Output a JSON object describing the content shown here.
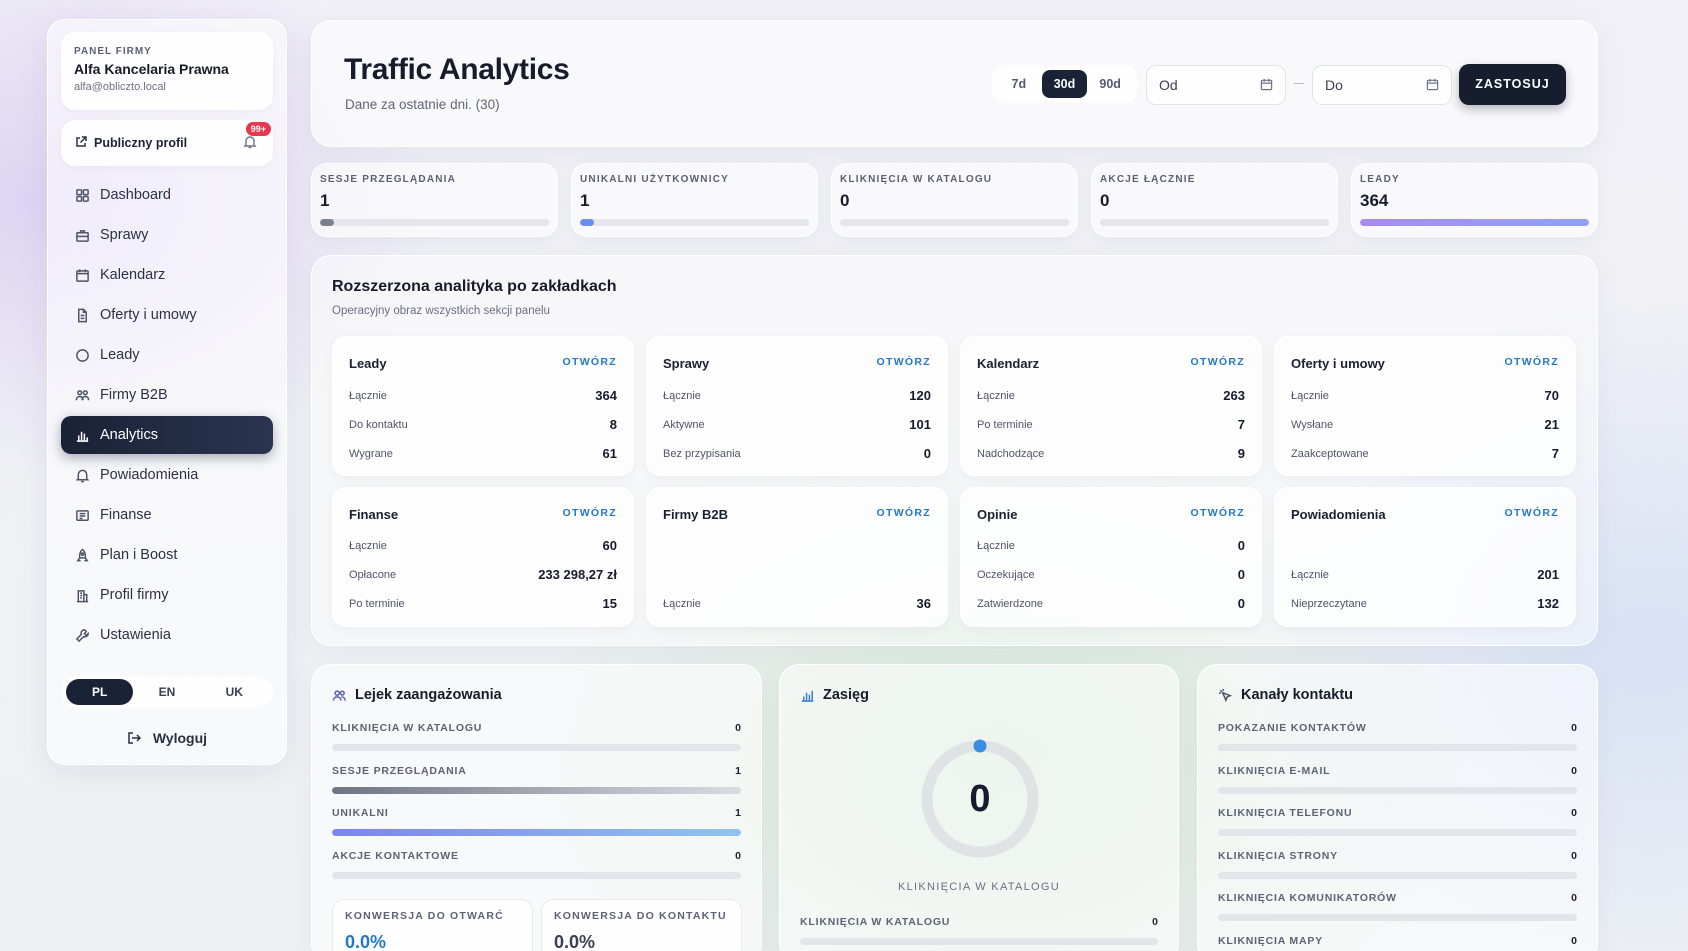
{
  "sidebar": {
    "kicker": "PANEL FIRMY",
    "company_name": "Alfa Kancelaria Prawna",
    "company_email": "alfa@obliczto.local",
    "public_profile": "Publiczny profil",
    "notif_badge": "99+",
    "nav": [
      {
        "label": "Dashboard",
        "icon": "grid-icon"
      },
      {
        "label": "Sprawy",
        "icon": "briefcase-icon"
      },
      {
        "label": "Kalendarz",
        "icon": "calendar-icon"
      },
      {
        "label": "Oferty i umowy",
        "icon": "document-icon"
      },
      {
        "label": "Leady",
        "icon": "chat-icon"
      },
      {
        "label": "Firmy B2B",
        "icon": "users-icon"
      },
      {
        "label": "Analytics",
        "icon": "bar-chart-icon",
        "active": true
      },
      {
        "label": "Powiadomienia",
        "icon": "bell-icon"
      },
      {
        "label": "Finanse",
        "icon": "receipt-icon"
      },
      {
        "label": "Plan i Boost",
        "icon": "rocket-icon"
      },
      {
        "label": "Profil firmy",
        "icon": "building-icon"
      },
      {
        "label": "Ustawienia",
        "icon": "wrench-icon"
      }
    ],
    "languages": [
      "PL",
      "EN",
      "UK"
    ],
    "active_language": "PL",
    "logout": "Wyloguj"
  },
  "header": {
    "title": "Traffic Analytics",
    "subtitle": "Dane za ostatnie dni. (30)",
    "ranges": [
      "7d",
      "30d",
      "90d"
    ],
    "active_range": "30d",
    "from_placeholder": "Od",
    "to_placeholder": "Do",
    "apply": "ZASTOSUJ"
  },
  "kpis": [
    {
      "label": "SESJE PRZEGLĄDANIA",
      "value": "1",
      "fill": 0.06,
      "color": "#7b808e"
    },
    {
      "label": "UNIKALNI UŻYTKOWNICY",
      "value": "1",
      "fill": 0.06,
      "color": "#6b8df0"
    },
    {
      "label": "KLIKNIĘCIA W KATALOGU",
      "value": "0",
      "fill": 0,
      "color": "#9aa0ad"
    },
    {
      "label": "AKCJE ŁĄCZNIE",
      "value": "0",
      "fill": 0,
      "color": "#9aa0ad"
    },
    {
      "label": "LEADY",
      "value": "364",
      "fill": 1.0,
      "color": "#a98cf0"
    }
  ],
  "extended": {
    "title": "Rozszerzona analityka po zakładkach",
    "subtitle": "Operacyjny obraz wszystkich sekcji panelu",
    "open_label": "OTWÓRZ",
    "tiles": [
      {
        "title": "Leady",
        "rows": [
          {
            "label": "Łącznie",
            "value": "364"
          },
          {
            "label": "Do kontaktu",
            "value": "8"
          },
          {
            "label": "Wygrane",
            "value": "61"
          }
        ]
      },
      {
        "title": "Sprawy",
        "rows": [
          {
            "label": "Łącznie",
            "value": "120"
          },
          {
            "label": "Aktywne",
            "value": "101"
          },
          {
            "label": "Bez przypisania",
            "value": "0"
          }
        ]
      },
      {
        "title": "Kalendarz",
        "rows": [
          {
            "label": "Łącznie",
            "value": "263"
          },
          {
            "label": "Po terminie",
            "value": "7"
          },
          {
            "label": "Nadchodzące",
            "value": "9"
          }
        ]
      },
      {
        "title": "Oferty i umowy",
        "rows": [
          {
            "label": "Łącznie",
            "value": "70"
          },
          {
            "label": "Wysłane",
            "value": "21"
          },
          {
            "label": "Zaakceptowane",
            "value": "7"
          }
        ]
      },
      {
        "title": "Finanse",
        "rows": [
          {
            "label": "Łącznie",
            "value": "60"
          },
          {
            "label": "Opłacone",
            "value": "233 298,27 zł"
          },
          {
            "label": "Po terminie",
            "value": "15"
          }
        ]
      },
      {
        "title": "Firmy B2B",
        "rows": [
          {
            "label": "Łącznie",
            "value": "36"
          }
        ]
      },
      {
        "title": "Opinie",
        "rows": [
          {
            "label": "Łącznie",
            "value": "0"
          },
          {
            "label": "Oczekujące",
            "value": "0"
          },
          {
            "label": "Zatwierdzone",
            "value": "0"
          }
        ]
      },
      {
        "title": "Powiadomienia",
        "rows": [
          {
            "label": "Łącznie",
            "value": "201"
          },
          {
            "label": "Nieprzeczytane",
            "value": "132"
          }
        ]
      }
    ]
  },
  "funnel": {
    "title": "Lejek zaangażowania",
    "metrics": [
      {
        "label": "KLIKNIĘCIA W KATALOGU",
        "value": "0",
        "fill": 0,
        "color": "#c7cad3"
      },
      {
        "label": "SESJE PRZEGLĄDANIA",
        "value": "1",
        "fill": 1.0,
        "color": "#6f7485"
      },
      {
        "label": "UNIKALNI",
        "value": "1",
        "fill": 1.0,
        "color": "#7d84ee"
      },
      {
        "label": "AKCJE KONTAKTOWE",
        "value": "0",
        "fill": 0,
        "color": "#c7cad3"
      }
    ],
    "conversions": [
      {
        "label": "KONWERSJA DO OTWARĆ",
        "value": "0.0%",
        "color": "#2378c8"
      },
      {
        "label": "KONWERSJA DO KONTAKTU",
        "value": "0.0%",
        "color": "#3a4052"
      }
    ]
  },
  "reach": {
    "title": "Zasięg",
    "ring_value": "0",
    "caption": "KLIKNIĘCIA W KATALOGU",
    "metric": {
      "label": "KLIKNIĘCIA W KATALOGU",
      "value": "0"
    }
  },
  "channels": {
    "title": "Kanały kontaktu",
    "metrics": [
      {
        "label": "POKAZANIE KONTAKTÓW",
        "value": "0"
      },
      {
        "label": "KLIKNIĘCIA E-MAIL",
        "value": "0"
      },
      {
        "label": "KLIKNIĘCIA TELEFONU",
        "value": "0"
      },
      {
        "label": "KLIKNIĘCIA STRONY",
        "value": "0"
      },
      {
        "label": "KLIKNIĘCIA KOMUNIKATORÓW",
        "value": "0"
      },
      {
        "label": "KLIKNIĘCIA MAPY",
        "value": "0"
      }
    ]
  }
}
